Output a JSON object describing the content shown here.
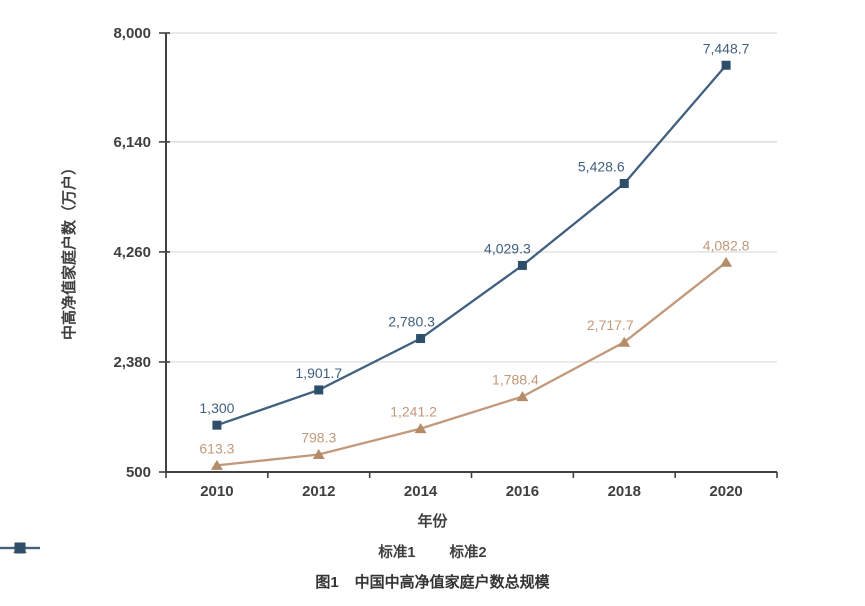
{
  "chart_data": {
    "type": "line",
    "caption": {
      "prefix": "图1",
      "text": "中国中高净值家庭户数总规模"
    },
    "xlabel": "年份",
    "ylabel": "中高净值家庭户数（万户）",
    "categories": [
      "2010",
      "2012",
      "2014",
      "2016",
      "2018",
      "2020"
    ],
    "ylim": [
      500,
      8000
    ],
    "yticks": [
      {
        "value": 500,
        "label": "500"
      },
      {
        "value": 2380,
        "label": "2,380"
      },
      {
        "value": 4260,
        "label": "4,260"
      },
      {
        "value": 6140,
        "label": "6,140"
      },
      {
        "value": 8000,
        "label": "8,000"
      }
    ],
    "grid": "horizontal",
    "legend_position": "bottom",
    "series": [
      {
        "name": "标准1",
        "marker": "triangle",
        "color": "#c2997a",
        "marker_color": "#b48c69",
        "values": [
          613.3,
          798.3,
          1241.2,
          1788.4,
          2717.7,
          4082.8
        ],
        "labels": [
          "613.3",
          "798.3",
          "1,241.2",
          "1,788.4",
          "2,717.7",
          "4,082.8"
        ],
        "label_dx": [
          0,
          0,
          -7,
          -7,
          -14,
          0
        ]
      },
      {
        "name": "标准2",
        "marker": "square",
        "color": "#41607f",
        "marker_color": "#2e4e69",
        "values": [
          1300,
          1901.7,
          2780.3,
          4029.3,
          5428.6,
          7448.7
        ],
        "labels": [
          "1,300",
          "1,901.7",
          "2,780.3",
          "4,029.3",
          "5,428.6",
          "7,448.7"
        ],
        "label_dx": [
          0,
          0,
          -9,
          -15,
          -23,
          0
        ]
      }
    ],
    "colors": {
      "grid": "#d9d9d9",
      "axis": "#404040",
      "tick_text": "#3f3f3f"
    }
  }
}
